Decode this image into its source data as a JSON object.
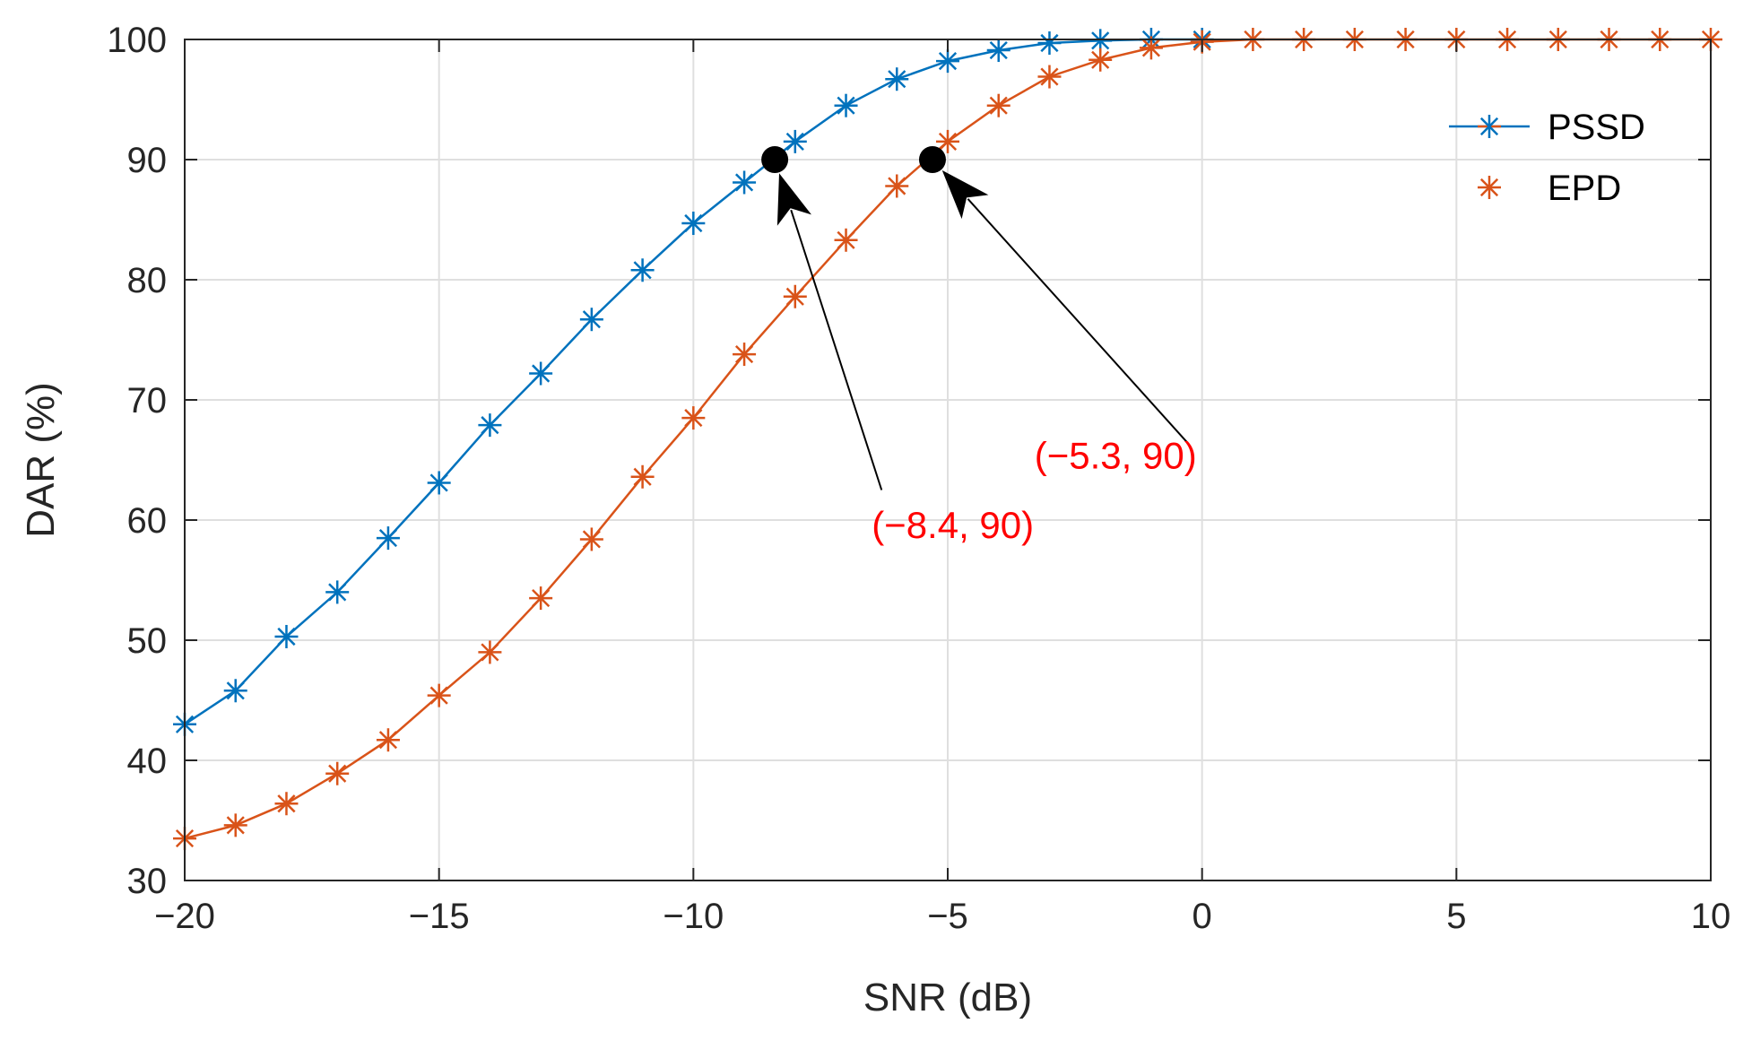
{
  "chart_data": {
    "type": "line",
    "title": "",
    "xlabel": "SNR (dB)",
    "ylabel": "DAR (%)",
    "xlim": [
      -20,
      10
    ],
    "ylim": [
      30,
      100
    ],
    "xticks": [
      -20,
      -15,
      -10,
      -5,
      0,
      5,
      10
    ],
    "xtick_labels": [
      "−20",
      "−15",
      "−10",
      "−5",
      "0",
      "5",
      "10"
    ],
    "yticks": [
      30,
      40,
      50,
      60,
      70,
      80,
      90,
      100
    ],
    "ytick_labels": [
      "30",
      "40",
      "50",
      "60",
      "70",
      "80",
      "90",
      "100"
    ],
    "grid": true,
    "legend_position": "top-right",
    "series": [
      {
        "name": "PSSD",
        "color": "#0072BD",
        "marker": "asterisk",
        "x": [
          -20,
          -19,
          -18,
          -17,
          -16,
          -15,
          -14,
          -13,
          -12,
          -11,
          -10,
          -9,
          -8,
          -7,
          -6,
          -5,
          -4,
          -3,
          -2,
          -1,
          0
        ],
        "y": [
          43,
          45.8,
          50.3,
          54,
          58.5,
          63.1,
          67.9,
          72.2,
          76.7,
          80.8,
          84.7,
          88.1,
          91.5,
          94.5,
          96.7,
          98.2,
          99.1,
          99.7,
          99.9,
          100,
          100
        ]
      },
      {
        "name": "EPD",
        "color": "#D95319",
        "marker": "asterisk",
        "x": [
          -20,
          -19,
          -18,
          -17,
          -16,
          -15,
          -14,
          -13,
          -12,
          -11,
          -10,
          -9,
          -8,
          -7,
          -6,
          -5,
          -4,
          -3,
          -2,
          -1,
          0,
          1,
          2,
          3,
          4,
          5,
          6,
          7,
          8,
          9,
          10
        ],
        "y": [
          33.5,
          34.6,
          36.4,
          38.9,
          41.7,
          45.4,
          49,
          53.5,
          58.4,
          63.6,
          68.5,
          73.8,
          78.6,
          83.3,
          87.8,
          91.5,
          94.5,
          96.9,
          98.3,
          99.3,
          99.8,
          100,
          100,
          100,
          100,
          100,
          100,
          100,
          100,
          100,
          100
        ]
      }
    ],
    "annotations": [
      {
        "text": "(−8.4, 90)",
        "point": [
          -8.4,
          90
        ],
        "text_at": [
          -4.9,
          58.5
        ],
        "arrow_from": [
          -6.3,
          62.5
        ],
        "color": "#FF0000"
      },
      {
        "text": "(−5.3, 90)",
        "point": [
          -5.3,
          90
        ],
        "text_at": [
          -1.7,
          64.3
        ],
        "arrow_from": [
          -0.3,
          66.5
        ],
        "color": "#FF0000"
      }
    ]
  }
}
